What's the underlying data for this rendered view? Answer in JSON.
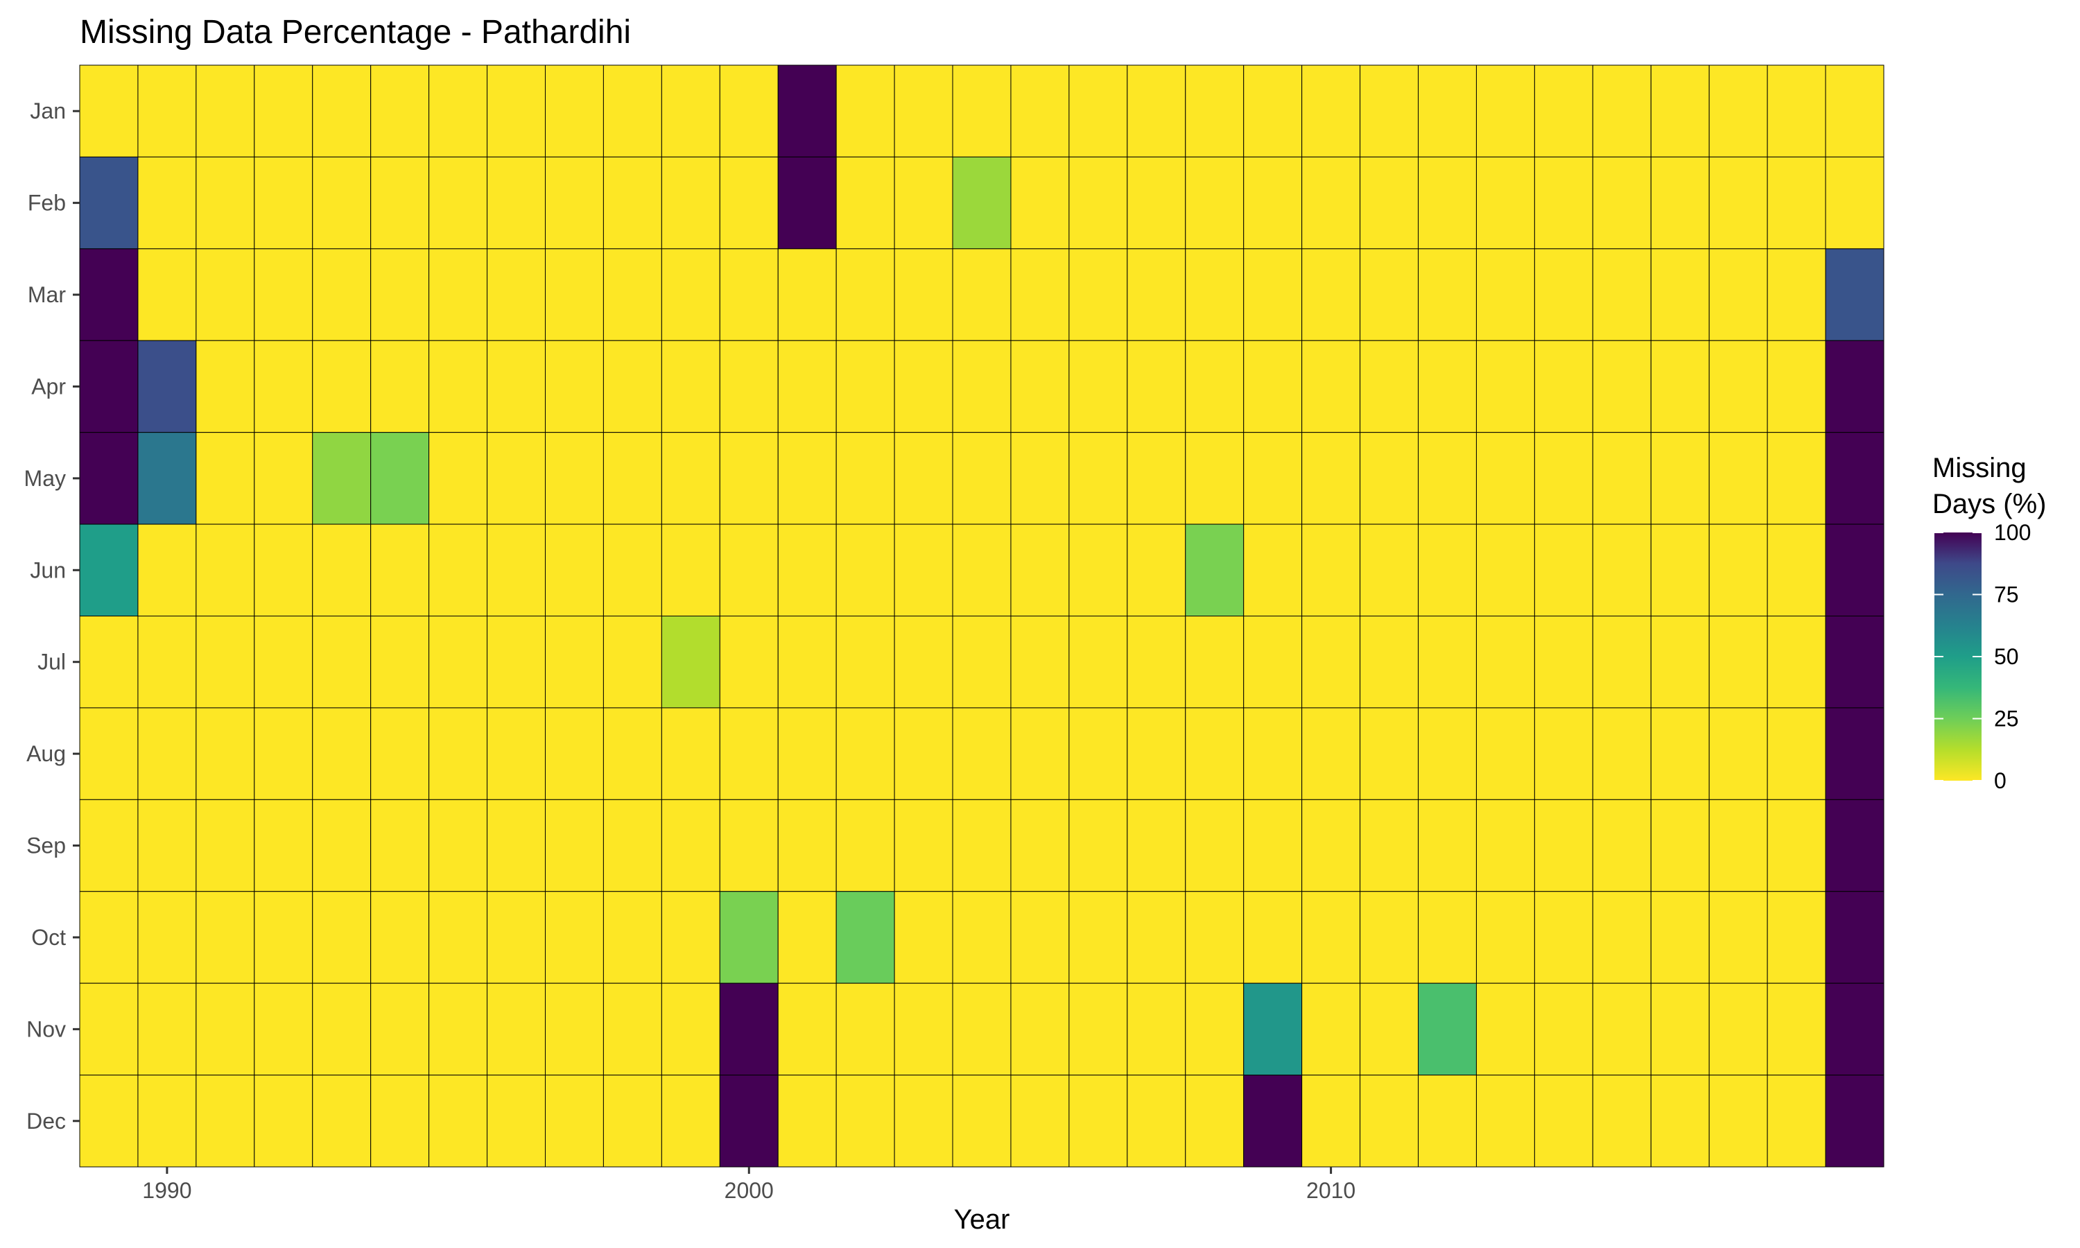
{
  "chart_data": {
    "type": "heatmap",
    "title": "Missing Data Percentage - Pathardihi",
    "xlabel": "Year",
    "ylabel": "",
    "x": [
      1989,
      1990,
      1991,
      1992,
      1993,
      1994,
      1995,
      1996,
      1997,
      1998,
      1999,
      2000,
      2001,
      2002,
      2003,
      2004,
      2005,
      2006,
      2007,
      2008,
      2009,
      2010,
      2011,
      2012,
      2013,
      2014,
      2015,
      2016,
      2017,
      2018,
      2019
    ],
    "x_ticks": [
      1990,
      2000,
      2010
    ],
    "y": [
      "Jan",
      "Feb",
      "Mar",
      "Apr",
      "May",
      "Jun",
      "Jul",
      "Aug",
      "Sep",
      "Oct",
      "Nov",
      "Dec"
    ],
    "cells": [
      {
        "year": 1989,
        "month": "Feb",
        "value": 83
      },
      {
        "year": 1989,
        "month": "Mar",
        "value": 100
      },
      {
        "year": 1989,
        "month": "Apr",
        "value": 100
      },
      {
        "year": 1989,
        "month": "May",
        "value": 100
      },
      {
        "year": 1989,
        "month": "Jun",
        "value": 50
      },
      {
        "year": 1990,
        "month": "Apr",
        "value": 85
      },
      {
        "year": 1990,
        "month": "May",
        "value": 68
      },
      {
        "year": 1993,
        "month": "May",
        "value": 19
      },
      {
        "year": 1994,
        "month": "May",
        "value": 23
      },
      {
        "year": 1999,
        "month": "Jul",
        "value": 13
      },
      {
        "year": 2000,
        "month": "Oct",
        "value": 23
      },
      {
        "year": 2000,
        "month": "Nov",
        "value": 100
      },
      {
        "year": 2000,
        "month": "Dec",
        "value": 100
      },
      {
        "year": 2001,
        "month": "Jan",
        "value": 100
      },
      {
        "year": 2001,
        "month": "Feb",
        "value": 100
      },
      {
        "year": 2002,
        "month": "Oct",
        "value": 26
      },
      {
        "year": 2004,
        "month": "Feb",
        "value": 17
      },
      {
        "year": 2008,
        "month": "Jun",
        "value": 23
      },
      {
        "year": 2009,
        "month": "Nov",
        "value": 53
      },
      {
        "year": 2009,
        "month": "Dec",
        "value": 100
      },
      {
        "year": 2012,
        "month": "Nov",
        "value": 33
      },
      {
        "year": 2019,
        "month": "Mar",
        "value": 83
      },
      {
        "year": 2019,
        "month": "Apr",
        "value": 100
      },
      {
        "year": 2019,
        "month": "May",
        "value": 100
      },
      {
        "year": 2019,
        "month": "Jun",
        "value": 100
      },
      {
        "year": 2019,
        "month": "Jul",
        "value": 100
      },
      {
        "year": 2019,
        "month": "Aug",
        "value": 100
      },
      {
        "year": 2019,
        "month": "Sep",
        "value": 100
      },
      {
        "year": 2019,
        "month": "Oct",
        "value": 100
      },
      {
        "year": 2019,
        "month": "Nov",
        "value": 100
      },
      {
        "year": 2019,
        "month": "Dec",
        "value": 100
      }
    ],
    "default_value": 0,
    "legend": {
      "title": "Missing Days (%)",
      "title_lines": [
        "Missing",
        "Days (%)"
      ],
      "ticks": [
        100,
        75,
        50,
        25,
        0
      ],
      "range": [
        0,
        100
      ],
      "placement": "right",
      "palette": "viridis"
    },
    "grid": false
  }
}
